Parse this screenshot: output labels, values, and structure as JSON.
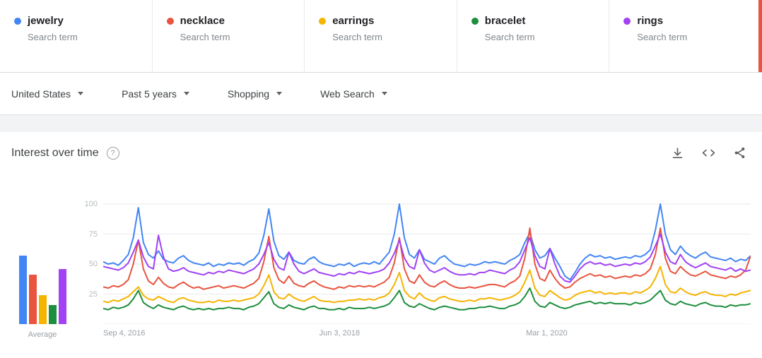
{
  "terms": [
    {
      "label": "jewelry",
      "sublabel": "Search term",
      "color": "#4285f4"
    },
    {
      "label": "necklace",
      "sublabel": "Search term",
      "color": "#e8543f"
    },
    {
      "label": "earrings",
      "sublabel": "Search term",
      "color": "#f4b400"
    },
    {
      "label": "bracelet",
      "sublabel": "Search term",
      "color": "#1e8e3e"
    },
    {
      "label": "rings",
      "sublabel": "Search term",
      "color": "#a142f4"
    }
  ],
  "colors": {
    "accent_edge": "#e8543f"
  },
  "filters": [
    {
      "label": "United States"
    },
    {
      "label": "Past 5 years"
    },
    {
      "label": "Shopping"
    },
    {
      "label": "Web Search"
    }
  ],
  "icons": {
    "help": "help-circle",
    "download": "download-arrow",
    "embed": "angle-brackets",
    "share": "share-nodes",
    "dropdown": "caret-down"
  },
  "chart_data": {
    "type": "line",
    "title": "Interest over time",
    "ylim": [
      0,
      100
    ],
    "yticks": [
      25,
      50,
      75,
      100
    ],
    "grid": true,
    "xticks": [
      {
        "label": "Sep 4, 2016",
        "pos": 0
      },
      {
        "label": "Jun 3, 2018",
        "pos": 0.365
      },
      {
        "label": "Mar 1, 2020",
        "pos": 0.685
      }
    ],
    "series": [
      {
        "name": "jewelry",
        "color": "#4285f4",
        "values": [
          52,
          50,
          51,
          49,
          53,
          58,
          72,
          97,
          68,
          58,
          55,
          61,
          54,
          52,
          51,
          55,
          57,
          53,
          51,
          50,
          49,
          51,
          48,
          50,
          49,
          51,
          50,
          51,
          49,
          52,
          54,
          59,
          74,
          96,
          69,
          57,
          54,
          60,
          53,
          51,
          50,
          54,
          56,
          52,
          50,
          49,
          48,
          50,
          49,
          51,
          48,
          50,
          51,
          50,
          52,
          50,
          55,
          60,
          75,
          100,
          72,
          58,
          55,
          62,
          54,
          52,
          50,
          55,
          57,
          53,
          50,
          49,
          48,
          50,
          49,
          50,
          52,
          51,
          52,
          51,
          50,
          53,
          55,
          58,
          68,
          76,
          62,
          55,
          57,
          63,
          55,
          48,
          40,
          37,
          43,
          50,
          55,
          58,
          56,
          57,
          55,
          56,
          54,
          55,
          56,
          55,
          57,
          56,
          58,
          62,
          78,
          100,
          75,
          62,
          58,
          65,
          60,
          57,
          55,
          58,
          60,
          56,
          55,
          54,
          53,
          55,
          52,
          54,
          53,
          57
        ]
      },
      {
        "name": "necklace",
        "color": "#e8543f",
        "values": [
          31,
          30,
          32,
          31,
          33,
          37,
          50,
          70,
          46,
          36,
          33,
          39,
          34,
          31,
          30,
          33,
          35,
          32,
          30,
          31,
          29,
          30,
          31,
          32,
          30,
          31,
          32,
          31,
          30,
          32,
          34,
          38,
          52,
          73,
          47,
          37,
          34,
          40,
          34,
          32,
          31,
          34,
          36,
          33,
          31,
          30,
          29,
          31,
          30,
          32,
          31,
          32,
          31,
          32,
          31,
          33,
          35,
          39,
          51,
          72,
          46,
          36,
          34,
          41,
          35,
          32,
          31,
          34,
          36,
          33,
          31,
          30,
          30,
          31,
          30,
          31,
          32,
          33,
          33,
          32,
          31,
          34,
          36,
          40,
          55,
          80,
          50,
          38,
          36,
          45,
          38,
          33,
          30,
          31,
          35,
          38,
          40,
          42,
          40,
          41,
          39,
          40,
          38,
          39,
          40,
          39,
          41,
          40,
          42,
          46,
          58,
          80,
          55,
          44,
          42,
          48,
          44,
          41,
          40,
          42,
          44,
          41,
          40,
          39,
          38,
          40,
          39,
          41,
          45,
          57
        ]
      },
      {
        "name": "earrings",
        "color": "#f4b400",
        "values": [
          19,
          18,
          20,
          19,
          21,
          23,
          27,
          31,
          24,
          21,
          20,
          23,
          21,
          19,
          18,
          21,
          22,
          20,
          19,
          18,
          18,
          19,
          18,
          20,
          19,
          19,
          20,
          19,
          20,
          21,
          22,
          25,
          32,
          41,
          27,
          22,
          21,
          25,
          22,
          20,
          19,
          21,
          23,
          20,
          19,
          19,
          18,
          19,
          19,
          20,
          20,
          21,
          20,
          21,
          20,
          22,
          23,
          26,
          33,
          43,
          28,
          23,
          21,
          26,
          22,
          20,
          19,
          22,
          23,
          21,
          20,
          19,
          19,
          20,
          19,
          21,
          21,
          22,
          21,
          20,
          21,
          22,
          24,
          27,
          35,
          45,
          30,
          24,
          23,
          28,
          25,
          22,
          20,
          21,
          24,
          26,
          27,
          28,
          26,
          27,
          25,
          26,
          25,
          26,
          26,
          25,
          27,
          26,
          28,
          31,
          38,
          48,
          33,
          27,
          26,
          30,
          27,
          25,
          24,
          26,
          27,
          25,
          24,
          24,
          23,
          25,
          24,
          26,
          27,
          28
        ]
      },
      {
        "name": "bracelet",
        "color": "#1e8e3e",
        "values": [
          13,
          12,
          14,
          13,
          14,
          16,
          21,
          28,
          18,
          15,
          13,
          16,
          14,
          13,
          12,
          14,
          15,
          13,
          12,
          13,
          12,
          13,
          12,
          13,
          13,
          14,
          13,
          13,
          12,
          14,
          15,
          17,
          22,
          27,
          17,
          14,
          13,
          16,
          14,
          13,
          12,
          14,
          15,
          13,
          13,
          12,
          12,
          13,
          12,
          14,
          13,
          13,
          13,
          14,
          13,
          14,
          15,
          17,
          22,
          28,
          18,
          15,
          14,
          17,
          15,
          13,
          12,
          14,
          15,
          14,
          13,
          12,
          12,
          13,
          13,
          14,
          14,
          15,
          14,
          13,
          13,
          15,
          16,
          18,
          23,
          30,
          19,
          15,
          14,
          18,
          16,
          14,
          13,
          14,
          16,
          17,
          18,
          19,
          17,
          18,
          17,
          18,
          17,
          17,
          17,
          16,
          18,
          17,
          18,
          20,
          24,
          28,
          20,
          17,
          16,
          19,
          17,
          16,
          15,
          17,
          18,
          16,
          15,
          15,
          14,
          16,
          15,
          16,
          16,
          17
        ]
      },
      {
        "name": "rings",
        "color": "#a142f4",
        "values": [
          48,
          47,
          46,
          45,
          47,
          51,
          60,
          70,
          56,
          48,
          46,
          74,
          56,
          46,
          44,
          45,
          47,
          44,
          43,
          42,
          41,
          43,
          42,
          44,
          43,
          45,
          44,
          43,
          42,
          44,
          46,
          50,
          58,
          68,
          54,
          47,
          45,
          60,
          50,
          44,
          42,
          44,
          46,
          43,
          42,
          41,
          40,
          42,
          41,
          43,
          42,
          44,
          43,
          42,
          43,
          44,
          46,
          51,
          59,
          70,
          55,
          48,
          46,
          62,
          51,
          45,
          43,
          45,
          47,
          44,
          42,
          41,
          41,
          42,
          41,
          43,
          43,
          45,
          44,
          43,
          42,
          45,
          47,
          52,
          62,
          72,
          57,
          48,
          46,
          63,
          50,
          40,
          36,
          35,
          40,
          46,
          50,
          52,
          50,
          51,
          49,
          50,
          48,
          49,
          50,
          49,
          51,
          50,
          52,
          56,
          65,
          75,
          60,
          52,
          50,
          58,
          52,
          49,
          47,
          49,
          51,
          48,
          47,
          46,
          45,
          47,
          44,
          46,
          44,
          45
        ]
      }
    ],
    "averages": {
      "label": "Average",
      "values": [
        57,
        41,
        24,
        16,
        46
      ]
    }
  }
}
